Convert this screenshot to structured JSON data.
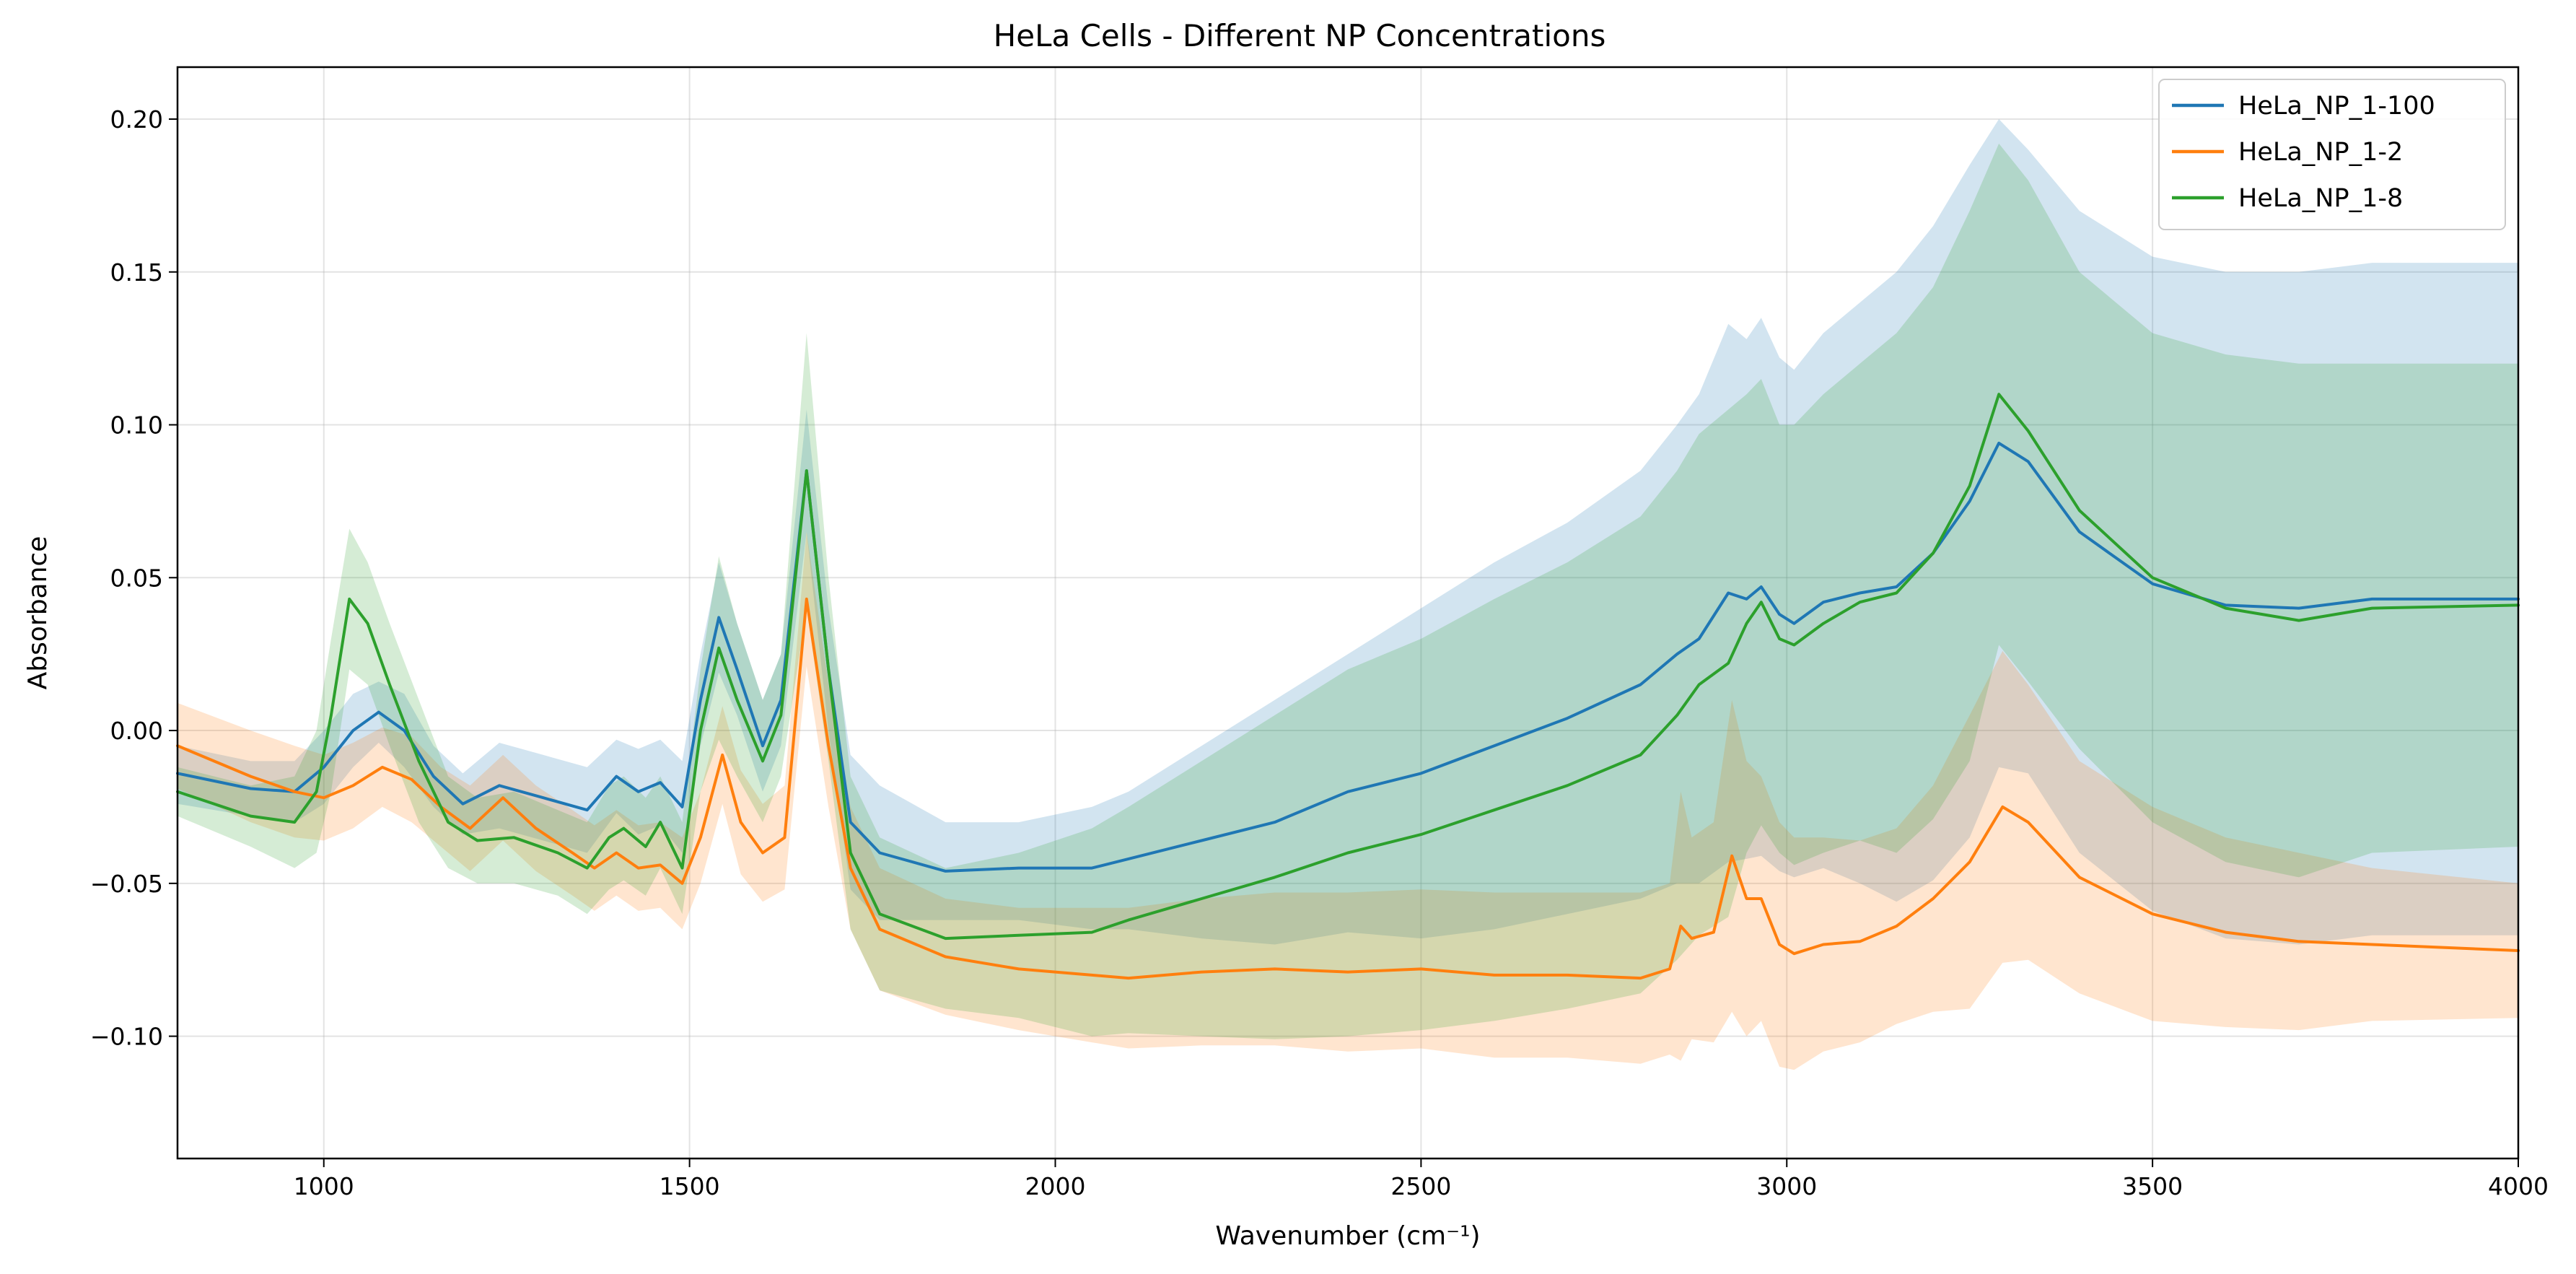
{
  "chart_data": {
    "type": "line",
    "title": "HeLa Cells - Different NP Concentrations",
    "xlabel": "Wavenumber (cm⁻¹)",
    "ylabel": "Absorbance",
    "xlim": [
      800,
      4000
    ],
    "ylim": [
      -0.14,
      0.217
    ],
    "xticks": [
      1000,
      1500,
      2000,
      2500,
      3000,
      3500,
      4000
    ],
    "yticks": [
      -0.1,
      -0.05,
      0.0,
      0.05,
      0.1,
      0.15,
      0.2
    ],
    "ytick_labels": [
      "−0.10",
      "−0.05",
      "0.00",
      "0.05",
      "0.10",
      "0.15",
      "0.20"
    ],
    "grid": true,
    "legend_position": "top-right",
    "band_opacity": 0.2,
    "series": [
      {
        "name": "HeLa_NP_1-100",
        "color": "#1f77b4",
        "x": [
          800,
          900,
          960,
          1000,
          1040,
          1075,
          1110,
          1150,
          1190,
          1240,
          1300,
          1360,
          1400,
          1430,
          1460,
          1490,
          1515,
          1540,
          1565,
          1600,
          1625,
          1660,
          1690,
          1720,
          1760,
          1850,
          1950,
          2050,
          2100,
          2200,
          2300,
          2400,
          2500,
          2600,
          2700,
          2800,
          2850,
          2880,
          2920,
          2945,
          2965,
          2990,
          3010,
          3050,
          3100,
          3150,
          3200,
          3250,
          3290,
          3330,
          3400,
          3500,
          3600,
          3700,
          3800,
          4000
        ],
        "y": [
          -0.014,
          -0.019,
          -0.02,
          -0.012,
          0.0,
          0.006,
          0.0,
          -0.015,
          -0.024,
          -0.018,
          -0.022,
          -0.026,
          -0.015,
          -0.02,
          -0.017,
          -0.025,
          0.01,
          0.037,
          0.02,
          -0.005,
          0.01,
          0.085,
          0.02,
          -0.03,
          -0.04,
          -0.046,
          -0.045,
          -0.045,
          -0.042,
          -0.036,
          -0.03,
          -0.02,
          -0.014,
          -0.005,
          0.004,
          0.015,
          0.025,
          0.03,
          0.045,
          0.043,
          0.047,
          0.038,
          0.035,
          0.042,
          0.045,
          0.047,
          0.058,
          0.075,
          0.094,
          0.088,
          0.065,
          0.048,
          0.041,
          0.04,
          0.043,
          0.043
        ],
        "upper": [
          -0.005,
          -0.01,
          -0.01,
          0.0,
          0.012,
          0.016,
          0.012,
          -0.005,
          -0.014,
          -0.004,
          -0.008,
          -0.012,
          -0.003,
          -0.006,
          -0.003,
          -0.01,
          0.025,
          0.055,
          0.035,
          0.01,
          0.025,
          0.105,
          0.04,
          -0.008,
          -0.018,
          -0.03,
          -0.03,
          -0.025,
          -0.02,
          -0.005,
          0.01,
          0.025,
          0.04,
          0.055,
          0.068,
          0.085,
          0.1,
          0.11,
          0.133,
          0.128,
          0.135,
          0.122,
          0.118,
          0.13,
          0.14,
          0.15,
          0.165,
          0.185,
          0.2,
          0.19,
          0.17,
          0.155,
          0.15,
          0.15,
          0.153,
          0.153
        ],
        "lower": [
          -0.024,
          -0.028,
          -0.03,
          -0.024,
          -0.012,
          -0.004,
          -0.012,
          -0.025,
          -0.034,
          -0.032,
          -0.036,
          -0.04,
          -0.027,
          -0.034,
          -0.031,
          -0.04,
          -0.005,
          0.019,
          0.005,
          -0.02,
          -0.005,
          0.065,
          0.0,
          -0.052,
          -0.062,
          -0.062,
          -0.062,
          -0.065,
          -0.065,
          -0.068,
          -0.07,
          -0.066,
          -0.068,
          -0.065,
          -0.06,
          -0.055,
          -0.05,
          -0.05,
          -0.043,
          -0.042,
          -0.041,
          -0.046,
          -0.048,
          -0.045,
          -0.05,
          -0.056,
          -0.049,
          -0.035,
          -0.012,
          -0.014,
          -0.04,
          -0.059,
          -0.068,
          -0.07,
          -0.067,
          -0.067
        ]
      },
      {
        "name": "HeLa_NP_1-2",
        "color": "#ff7f0e",
        "x": [
          800,
          900,
          960,
          1000,
          1040,
          1080,
          1120,
          1160,
          1200,
          1245,
          1290,
          1340,
          1370,
          1400,
          1430,
          1460,
          1490,
          1515,
          1545,
          1570,
          1600,
          1630,
          1660,
          1690,
          1720,
          1760,
          1850,
          1950,
          2050,
          2100,
          2200,
          2300,
          2400,
          2500,
          2600,
          2700,
          2800,
          2840,
          2855,
          2870,
          2900,
          2925,
          2945,
          2965,
          2990,
          3010,
          3050,
          3100,
          3150,
          3200,
          3250,
          3295,
          3330,
          3400,
          3500,
          3600,
          3700,
          3800,
          4000
        ],
        "y": [
          -0.005,
          -0.015,
          -0.02,
          -0.022,
          -0.018,
          -0.012,
          -0.016,
          -0.025,
          -0.032,
          -0.022,
          -0.032,
          -0.04,
          -0.045,
          -0.04,
          -0.045,
          -0.044,
          -0.05,
          -0.035,
          -0.008,
          -0.03,
          -0.04,
          -0.035,
          0.043,
          -0.005,
          -0.045,
          -0.065,
          -0.074,
          -0.078,
          -0.08,
          -0.081,
          -0.079,
          -0.078,
          -0.079,
          -0.078,
          -0.08,
          -0.08,
          -0.081,
          -0.078,
          -0.064,
          -0.068,
          -0.066,
          -0.041,
          -0.055,
          -0.055,
          -0.07,
          -0.073,
          -0.07,
          -0.069,
          -0.064,
          -0.055,
          -0.043,
          -0.025,
          -0.03,
          -0.048,
          -0.06,
          -0.066,
          -0.069,
          -0.07,
          -0.072
        ],
        "upper": [
          0.009,
          0.0,
          -0.005,
          -0.008,
          -0.004,
          0.001,
          -0.002,
          -0.012,
          -0.018,
          -0.008,
          -0.018,
          -0.026,
          -0.031,
          -0.026,
          -0.031,
          -0.03,
          -0.035,
          -0.02,
          0.008,
          -0.013,
          -0.024,
          -0.018,
          0.065,
          0.015,
          -0.025,
          -0.045,
          -0.055,
          -0.058,
          -0.058,
          -0.058,
          -0.055,
          -0.053,
          -0.053,
          -0.052,
          -0.053,
          -0.053,
          -0.053,
          -0.05,
          -0.02,
          -0.035,
          -0.03,
          0.01,
          -0.01,
          -0.015,
          -0.03,
          -0.035,
          -0.035,
          -0.036,
          -0.032,
          -0.018,
          0.005,
          0.026,
          0.015,
          -0.01,
          -0.025,
          -0.035,
          -0.04,
          -0.045,
          -0.05
        ],
        "lower": [
          -0.019,
          -0.03,
          -0.035,
          -0.036,
          -0.032,
          -0.025,
          -0.03,
          -0.038,
          -0.046,
          -0.036,
          -0.046,
          -0.054,
          -0.059,
          -0.054,
          -0.059,
          -0.058,
          -0.065,
          -0.05,
          -0.024,
          -0.047,
          -0.056,
          -0.052,
          0.021,
          -0.025,
          -0.065,
          -0.085,
          -0.093,
          -0.098,
          -0.102,
          -0.104,
          -0.103,
          -0.103,
          -0.105,
          -0.104,
          -0.107,
          -0.107,
          -0.109,
          -0.106,
          -0.108,
          -0.101,
          -0.102,
          -0.092,
          -0.1,
          -0.095,
          -0.11,
          -0.111,
          -0.105,
          -0.102,
          -0.096,
          -0.092,
          -0.091,
          -0.076,
          -0.075,
          -0.086,
          -0.095,
          -0.097,
          -0.098,
          -0.095,
          -0.094
        ]
      },
      {
        "name": "HeLa_NP_1-8",
        "color": "#2ca02c",
        "x": [
          800,
          900,
          960,
          990,
          1010,
          1035,
          1060,
          1090,
          1130,
          1170,
          1210,
          1260,
          1320,
          1360,
          1390,
          1410,
          1440,
          1460,
          1490,
          1515,
          1540,
          1565,
          1600,
          1625,
          1660,
          1690,
          1720,
          1760,
          1850,
          1950,
          2050,
          2100,
          2200,
          2300,
          2400,
          2500,
          2600,
          2700,
          2800,
          2850,
          2880,
          2920,
          2945,
          2965,
          2990,
          3010,
          3050,
          3100,
          3150,
          3200,
          3250,
          3290,
          3330,
          3400,
          3500,
          3600,
          3700,
          3800,
          4000
        ],
        "y": [
          -0.02,
          -0.028,
          -0.03,
          -0.02,
          0.005,
          0.043,
          0.035,
          0.015,
          -0.01,
          -0.03,
          -0.036,
          -0.035,
          -0.04,
          -0.045,
          -0.035,
          -0.032,
          -0.038,
          -0.03,
          -0.045,
          0.0,
          0.027,
          0.01,
          -0.01,
          0.005,
          0.085,
          0.02,
          -0.04,
          -0.06,
          -0.068,
          -0.067,
          -0.066,
          -0.062,
          -0.055,
          -0.048,
          -0.04,
          -0.034,
          -0.026,
          -0.018,
          -0.008,
          0.005,
          0.015,
          0.022,
          0.035,
          0.042,
          0.03,
          0.028,
          0.035,
          0.042,
          0.045,
          0.058,
          0.08,
          0.11,
          0.098,
          0.072,
          0.05,
          0.04,
          0.036,
          0.04,
          0.041
        ],
        "upper": [
          -0.012,
          -0.018,
          -0.015,
          0.0,
          0.03,
          0.066,
          0.055,
          0.035,
          0.01,
          -0.015,
          -0.022,
          -0.02,
          -0.026,
          -0.03,
          -0.018,
          -0.015,
          -0.022,
          -0.015,
          -0.03,
          0.02,
          0.057,
          0.035,
          0.01,
          0.025,
          0.13,
          0.05,
          -0.015,
          -0.035,
          -0.045,
          -0.04,
          -0.032,
          -0.025,
          -0.01,
          0.005,
          0.02,
          0.03,
          0.043,
          0.055,
          0.07,
          0.085,
          0.097,
          0.105,
          0.11,
          0.115,
          0.1,
          0.1,
          0.11,
          0.12,
          0.13,
          0.145,
          0.17,
          0.192,
          0.18,
          0.15,
          0.13,
          0.123,
          0.12,
          0.12,
          0.12
        ],
        "lower": [
          -0.028,
          -0.038,
          -0.045,
          -0.04,
          -0.02,
          0.02,
          0.015,
          -0.005,
          -0.03,
          -0.045,
          -0.05,
          -0.05,
          -0.054,
          -0.06,
          -0.052,
          -0.049,
          -0.054,
          -0.045,
          -0.06,
          -0.02,
          -0.003,
          -0.015,
          -0.03,
          -0.015,
          0.04,
          -0.01,
          -0.065,
          -0.085,
          -0.091,
          -0.094,
          -0.1,
          -0.099,
          -0.1,
          -0.101,
          -0.1,
          -0.098,
          -0.095,
          -0.091,
          -0.086,
          -0.075,
          -0.067,
          -0.061,
          -0.04,
          -0.031,
          -0.04,
          -0.044,
          -0.04,
          -0.036,
          -0.04,
          -0.029,
          -0.01,
          0.028,
          0.016,
          -0.006,
          -0.03,
          -0.043,
          -0.048,
          -0.04,
          -0.038
        ]
      }
    ]
  }
}
